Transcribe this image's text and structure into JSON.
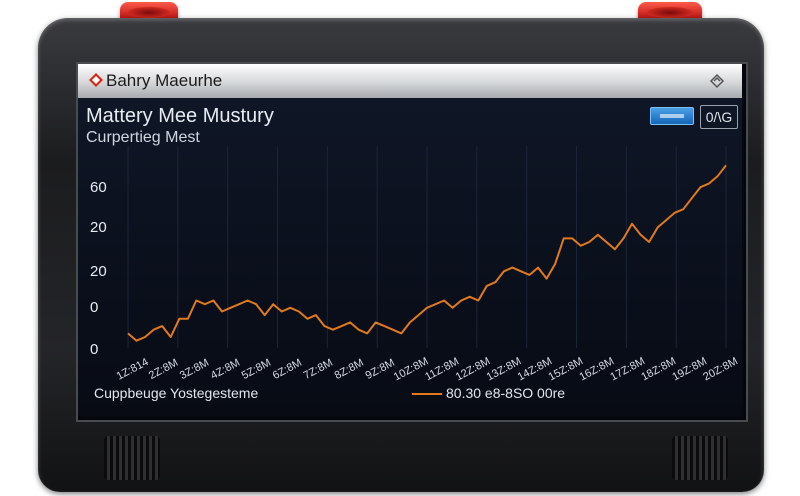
{
  "window": {
    "app_title": "Bahry Maeurhe",
    "logo_icon": "diamond-logo-icon",
    "collapse_icon": "chevron-diamond-icon"
  },
  "panel": {
    "heading": "Mattery Mee Mustury",
    "subheading": "Curpertieg Mest",
    "toggle_button_label": "",
    "unit_button_label": "0/\\G",
    "footer_label": "Cuppbeuge Yostegesteme",
    "legend_label": "80.30 e8-8SO 00re"
  },
  "colors": {
    "accent_line": "#e07a1c",
    "screen_bg": "#0b1020",
    "button_blue": "#2a82d4"
  },
  "chart_data": {
    "type": "line",
    "title": "Mattery Mee Mustury",
    "subtitle": "Curpertieg Mest",
    "y_tick_labels": [
      "60",
      "20",
      "20",
      "0",
      "0"
    ],
    "x_tick_labels": [
      "1Z:814",
      "2Z:8M",
      "3Z:8M",
      "4Z:8M",
      "5Z:8M",
      "6Z:8M",
      "7Z:8M",
      "8Z:8M",
      "9Z:8M",
      "10Z:8M",
      "11Z:8M",
      "12Z:8M",
      "13Z:8M",
      "14Z:8M",
      "15Z:8M",
      "16Z:8M",
      "17Z:8M",
      "18Z:8M",
      "19Z:8M",
      "20Z:8M"
    ],
    "grid": true,
    "legend": "bottom-center",
    "series": [
      {
        "color": "#e07a1c",
        "x": [
          0,
          1,
          2,
          3,
          4,
          5,
          6,
          7,
          8,
          9,
          10,
          11,
          12,
          13,
          14,
          15,
          16,
          17,
          18,
          19,
          20,
          21,
          22,
          23,
          24,
          25,
          26,
          27,
          28,
          29,
          30,
          31,
          32,
          33,
          34,
          35,
          36,
          37,
          38,
          39,
          40,
          41,
          42,
          43,
          44,
          45,
          46,
          47,
          48,
          49,
          50,
          51,
          52,
          53,
          54,
          55,
          56,
          57,
          58,
          59,
          60,
          61,
          62,
          63,
          64,
          65,
          66,
          67,
          68,
          69,
          70
        ],
        "values": [
          4,
          2,
          3,
          5,
          6,
          3,
          8,
          8,
          13,
          12,
          13,
          10,
          11,
          12,
          13,
          12,
          9,
          12,
          10,
          11,
          10,
          8,
          9,
          6,
          5,
          6,
          7,
          5,
          4,
          7,
          6,
          5,
          4,
          7,
          9,
          11,
          12,
          13,
          11,
          13,
          14,
          13,
          17,
          18,
          21,
          22,
          21,
          20,
          22,
          19,
          23,
          30,
          30,
          28,
          29,
          31,
          29,
          27,
          30,
          34,
          31,
          29,
          33,
          35,
          37,
          38,
          41,
          44,
          45,
          47,
          50
        ]
      }
    ]
  }
}
